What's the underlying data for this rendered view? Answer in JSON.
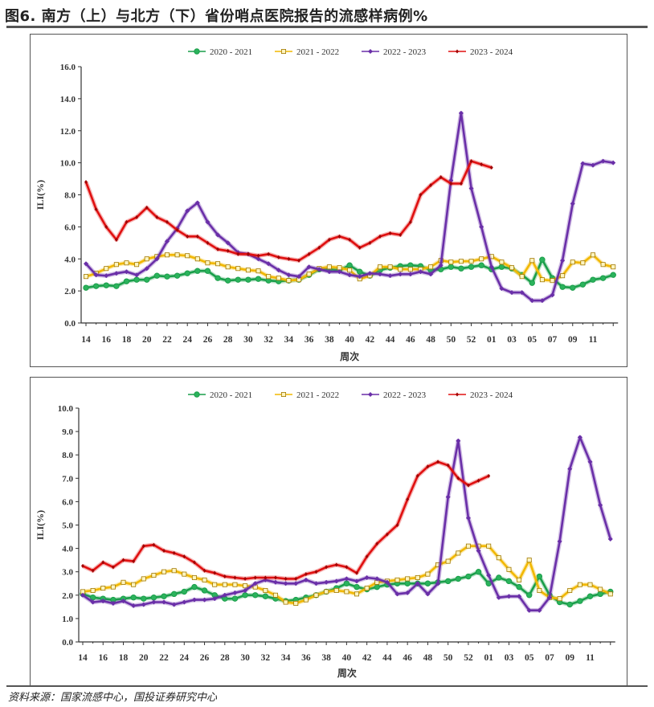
{
  "title": "图6. 南方（上）与北方（下）省份哨点医院报告的流感样病例%",
  "source": "资料来源：国家流感中心，国投证券研究中心",
  "colors": {
    "2020 - 2021": "#1a9e4a",
    "2021 - 2022": "#f2b800",
    "2022 - 2023": "#6a2fa8",
    "2023 - 2024": "#e01010"
  },
  "chart_data": [
    {
      "type": "line",
      "title": "",
      "xlabel": "周次",
      "ylabel": "ILI(%)",
      "ylim": [
        0,
        16
      ],
      "y_ticks": [
        "0.0",
        "2.0",
        "4.0",
        "6.0",
        "8.0",
        "10.0",
        "12.0",
        "14.0",
        "16.0"
      ],
      "legend_position": "top",
      "x": [
        "14",
        "15",
        "16",
        "17",
        "18",
        "19",
        "20",
        "21",
        "22",
        "23",
        "24",
        "25",
        "26",
        "27",
        "28",
        "29",
        "30",
        "31",
        "32",
        "33",
        "34",
        "35",
        "36",
        "37",
        "38",
        "39",
        "40",
        "41",
        "42",
        "43",
        "44",
        "45",
        "46",
        "47",
        "48",
        "49",
        "50",
        "51",
        "52",
        "53",
        "01",
        "02",
        "03",
        "04",
        "05",
        "06",
        "07",
        "08",
        "09",
        "10",
        "11",
        "12",
        "13"
      ],
      "x_tick_labels": [
        "14",
        "16",
        "18",
        "20",
        "22",
        "24",
        "26",
        "28",
        "30",
        "32",
        "34",
        "36",
        "38",
        "40",
        "42",
        "44",
        "46",
        "48",
        "50",
        "52",
        "01",
        "03",
        "05",
        "07",
        "09",
        "11"
      ],
      "series": [
        {
          "name": "2020 - 2021",
          "marker": "circle",
          "values": [
            2.2,
            2.3,
            2.35,
            2.3,
            2.6,
            2.7,
            2.7,
            2.95,
            2.9,
            2.95,
            3.1,
            3.25,
            3.25,
            2.8,
            2.65,
            2.7,
            2.7,
            2.75,
            2.65,
            2.6,
            2.65,
            2.7,
            3.0,
            3.35,
            3.35,
            3.3,
            3.6,
            3.2,
            2.95,
            3.3,
            3.45,
            3.55,
            3.6,
            3.55,
            3.3,
            3.35,
            3.5,
            3.4,
            3.5,
            3.6,
            3.35,
            3.5,
            3.4,
            3.0,
            2.5,
            3.95,
            2.8,
            2.25,
            2.2,
            2.4,
            2.7,
            2.8,
            3.0
          ]
        },
        {
          "name": "2021 - 2022",
          "marker": "square",
          "values": [
            2.9,
            3.1,
            3.4,
            3.65,
            3.75,
            3.65,
            4.0,
            4.15,
            4.25,
            4.25,
            4.2,
            4.0,
            3.75,
            3.7,
            3.5,
            3.4,
            3.3,
            3.25,
            2.9,
            2.8,
            2.65,
            2.7,
            3.05,
            3.4,
            3.5,
            3.45,
            3.3,
            2.75,
            2.95,
            3.5,
            3.5,
            3.35,
            3.35,
            3.35,
            3.5,
            3.9,
            3.8,
            3.85,
            3.85,
            4.0,
            4.15,
            3.8,
            3.45,
            2.9,
            3.9,
            2.7,
            2.65,
            2.95,
            3.8,
            3.75,
            4.25,
            3.65,
            3.5
          ]
        },
        {
          "name": "2022 - 2023",
          "marker": "diamond",
          "values": [
            3.7,
            3.0,
            2.95,
            3.1,
            3.2,
            3.0,
            3.4,
            4.0,
            5.1,
            5.9,
            7.0,
            7.5,
            6.3,
            5.5,
            5.0,
            4.4,
            4.3,
            4.0,
            3.7,
            3.3,
            3.0,
            2.9,
            3.5,
            3.35,
            3.2,
            3.2,
            3.0,
            2.9,
            3.1,
            3.05,
            2.95,
            3.05,
            3.05,
            3.2,
            3.05,
            3.6,
            8.9,
            13.1,
            8.4,
            6.0,
            3.5,
            2.15,
            1.9,
            1.9,
            1.4,
            1.4,
            1.75,
            3.9,
            7.45,
            9.95,
            9.85,
            10.1,
            10.0
          ]
        },
        {
          "name": "2023 - 2024",
          "marker": "star",
          "values": [
            8.8,
            7.1,
            6.0,
            5.2,
            6.3,
            6.6,
            7.2,
            6.6,
            6.3,
            5.8,
            5.4,
            5.4,
            5.0,
            4.6,
            4.5,
            4.3,
            4.3,
            4.2,
            4.3,
            4.1,
            4.0,
            3.9,
            4.3,
            4.7,
            5.2,
            5.4,
            5.2,
            4.7,
            5.0,
            5.4,
            5.6,
            5.5,
            6.3,
            8.0,
            8.6,
            9.1,
            8.7,
            8.7,
            10.1,
            9.9,
            9.7,
            null,
            null,
            null,
            null,
            null,
            null,
            null,
            null,
            null,
            null,
            null,
            null
          ]
        }
      ]
    },
    {
      "type": "line",
      "title": "",
      "xlabel": "周次",
      "ylabel": "ILI(%)",
      "ylim": [
        0,
        10
      ],
      "y_ticks": [
        "0.0",
        "1.0",
        "2.0",
        "3.0",
        "4.0",
        "5.0",
        "6.0",
        "7.0",
        "8.0",
        "9.0",
        "10.0"
      ],
      "legend_position": "top",
      "x": [
        "14",
        "15",
        "16",
        "17",
        "18",
        "19",
        "20",
        "21",
        "22",
        "23",
        "24",
        "25",
        "26",
        "27",
        "28",
        "29",
        "30",
        "31",
        "32",
        "33",
        "34",
        "35",
        "36",
        "37",
        "38",
        "39",
        "40",
        "41",
        "42",
        "43",
        "44",
        "45",
        "46",
        "47",
        "48",
        "49",
        "50",
        "51",
        "52",
        "53",
        "01",
        "02",
        "03",
        "04",
        "05",
        "06",
        "07",
        "08",
        "09",
        "10",
        "11",
        "12",
        "13"
      ],
      "x_tick_labels": [
        "14",
        "16",
        "18",
        "20",
        "22",
        "24",
        "26",
        "28",
        "30",
        "32",
        "34",
        "36",
        "38",
        "40",
        "42",
        "44",
        "46",
        "48",
        "50",
        "52",
        "01",
        "03",
        "05",
        "07",
        "09",
        "11"
      ],
      "series": [
        {
          "name": "2020 - 2021",
          "marker": "circle",
          "values": [
            2.05,
            1.9,
            1.85,
            1.8,
            1.85,
            1.9,
            1.85,
            1.9,
            1.95,
            2.05,
            2.15,
            2.35,
            2.2,
            2.0,
            1.85,
            1.85,
            2.0,
            2.0,
            1.95,
            1.85,
            1.75,
            1.8,
            1.9,
            2.0,
            2.15,
            2.3,
            2.5,
            2.35,
            2.25,
            2.35,
            2.45,
            2.5,
            2.5,
            2.5,
            2.5,
            2.55,
            2.6,
            2.7,
            2.8,
            3.0,
            2.5,
            2.75,
            2.6,
            2.35,
            2.0,
            2.8,
            2.0,
            1.7,
            1.6,
            1.75,
            1.95,
            2.05,
            2.15
          ]
        },
        {
          "name": "2021 - 2022",
          "marker": "square",
          "values": [
            2.15,
            2.2,
            2.3,
            2.35,
            2.55,
            2.45,
            2.7,
            2.85,
            3.0,
            3.05,
            2.9,
            2.75,
            2.65,
            2.45,
            2.45,
            2.45,
            2.4,
            2.35,
            2.2,
            2.0,
            1.7,
            1.65,
            1.8,
            2.0,
            2.15,
            2.2,
            2.15,
            2.05,
            2.3,
            2.55,
            2.6,
            2.65,
            2.7,
            2.75,
            2.9,
            3.3,
            3.45,
            3.8,
            4.1,
            4.1,
            4.1,
            3.6,
            3.1,
            2.65,
            3.5,
            2.2,
            1.9,
            1.85,
            2.2,
            2.45,
            2.45,
            2.25,
            2.05
          ]
        },
        {
          "name": "2022 - 2023",
          "marker": "diamond",
          "values": [
            2.0,
            1.7,
            1.75,
            1.65,
            1.75,
            1.55,
            1.6,
            1.7,
            1.7,
            1.6,
            1.7,
            1.8,
            1.8,
            1.85,
            2.0,
            2.1,
            2.2,
            2.5,
            2.65,
            2.55,
            2.5,
            2.5,
            2.65,
            2.5,
            2.55,
            2.6,
            2.7,
            2.6,
            2.75,
            2.7,
            2.55,
            2.05,
            2.1,
            2.5,
            2.05,
            2.5,
            6.2,
            8.6,
            5.3,
            3.9,
            2.85,
            1.9,
            1.95,
            1.95,
            1.35,
            1.35,
            1.9,
            4.3,
            7.4,
            8.75,
            7.7,
            5.85,
            4.4
          ]
        },
        {
          "name": "2023 - 2024",
          "marker": "star",
          "values": [
            3.25,
            3.05,
            3.4,
            3.2,
            3.5,
            3.45,
            4.1,
            4.15,
            3.9,
            3.8,
            3.65,
            3.4,
            3.05,
            2.95,
            2.8,
            2.75,
            2.7,
            2.75,
            2.75,
            2.75,
            2.7,
            2.7,
            2.9,
            3.0,
            3.2,
            3.3,
            3.2,
            2.95,
            3.65,
            4.2,
            4.6,
            5.0,
            6.1,
            7.1,
            7.5,
            7.7,
            7.55,
            7.0,
            6.7,
            6.9,
            7.1,
            null,
            null,
            null,
            null,
            null,
            null,
            null,
            null,
            null,
            null,
            null,
            null
          ]
        }
      ]
    }
  ]
}
